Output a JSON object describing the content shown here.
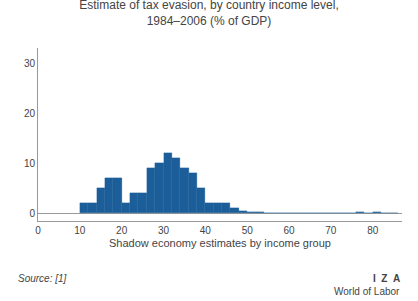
{
  "chart_data": {
    "type": "histogram",
    "title": "Estimate of tax evasion, by country income level,",
    "subtitle": "1984–2006 (% of GDP)",
    "x_label": "Shadow economy estimates by income group",
    "annotations": [
      "Source: [1]",
      "I  Z  A",
      "World of Labor"
    ],
    "bins": [
      10,
      12,
      14,
      16,
      18,
      20,
      22,
      24,
      26,
      28,
      30,
      32,
      34,
      36,
      38,
      40,
      42,
      44,
      46,
      48,
      50,
      52,
      54,
      56,
      58,
      60,
      62,
      64,
      66,
      68,
      70,
      72,
      74,
      76,
      78,
      80,
      82,
      84,
      86
    ],
    "values": [
      2,
      2,
      5,
      7,
      7,
      2,
      4,
      4,
      9,
      10,
      12,
      11,
      9,
      8,
      5,
      2,
      2,
      2,
      1,
      0.5,
      0.3,
      0.2,
      0.1,
      0.1,
      0.1,
      0.1,
      0,
      0,
      0,
      0,
      0,
      0,
      0,
      0.3,
      0.1,
      0.3,
      0.1,
      0
    ],
    "color": "#1B5E99",
    "xlim": [
      0,
      87
    ],
    "ylim": [
      -1.5,
      33
    ],
    "xticks": [
      0,
      10,
      20,
      30,
      40,
      50,
      60,
      70,
      80
    ],
    "yticks": [
      0,
      10,
      20,
      30
    ],
    "grid": false
  }
}
